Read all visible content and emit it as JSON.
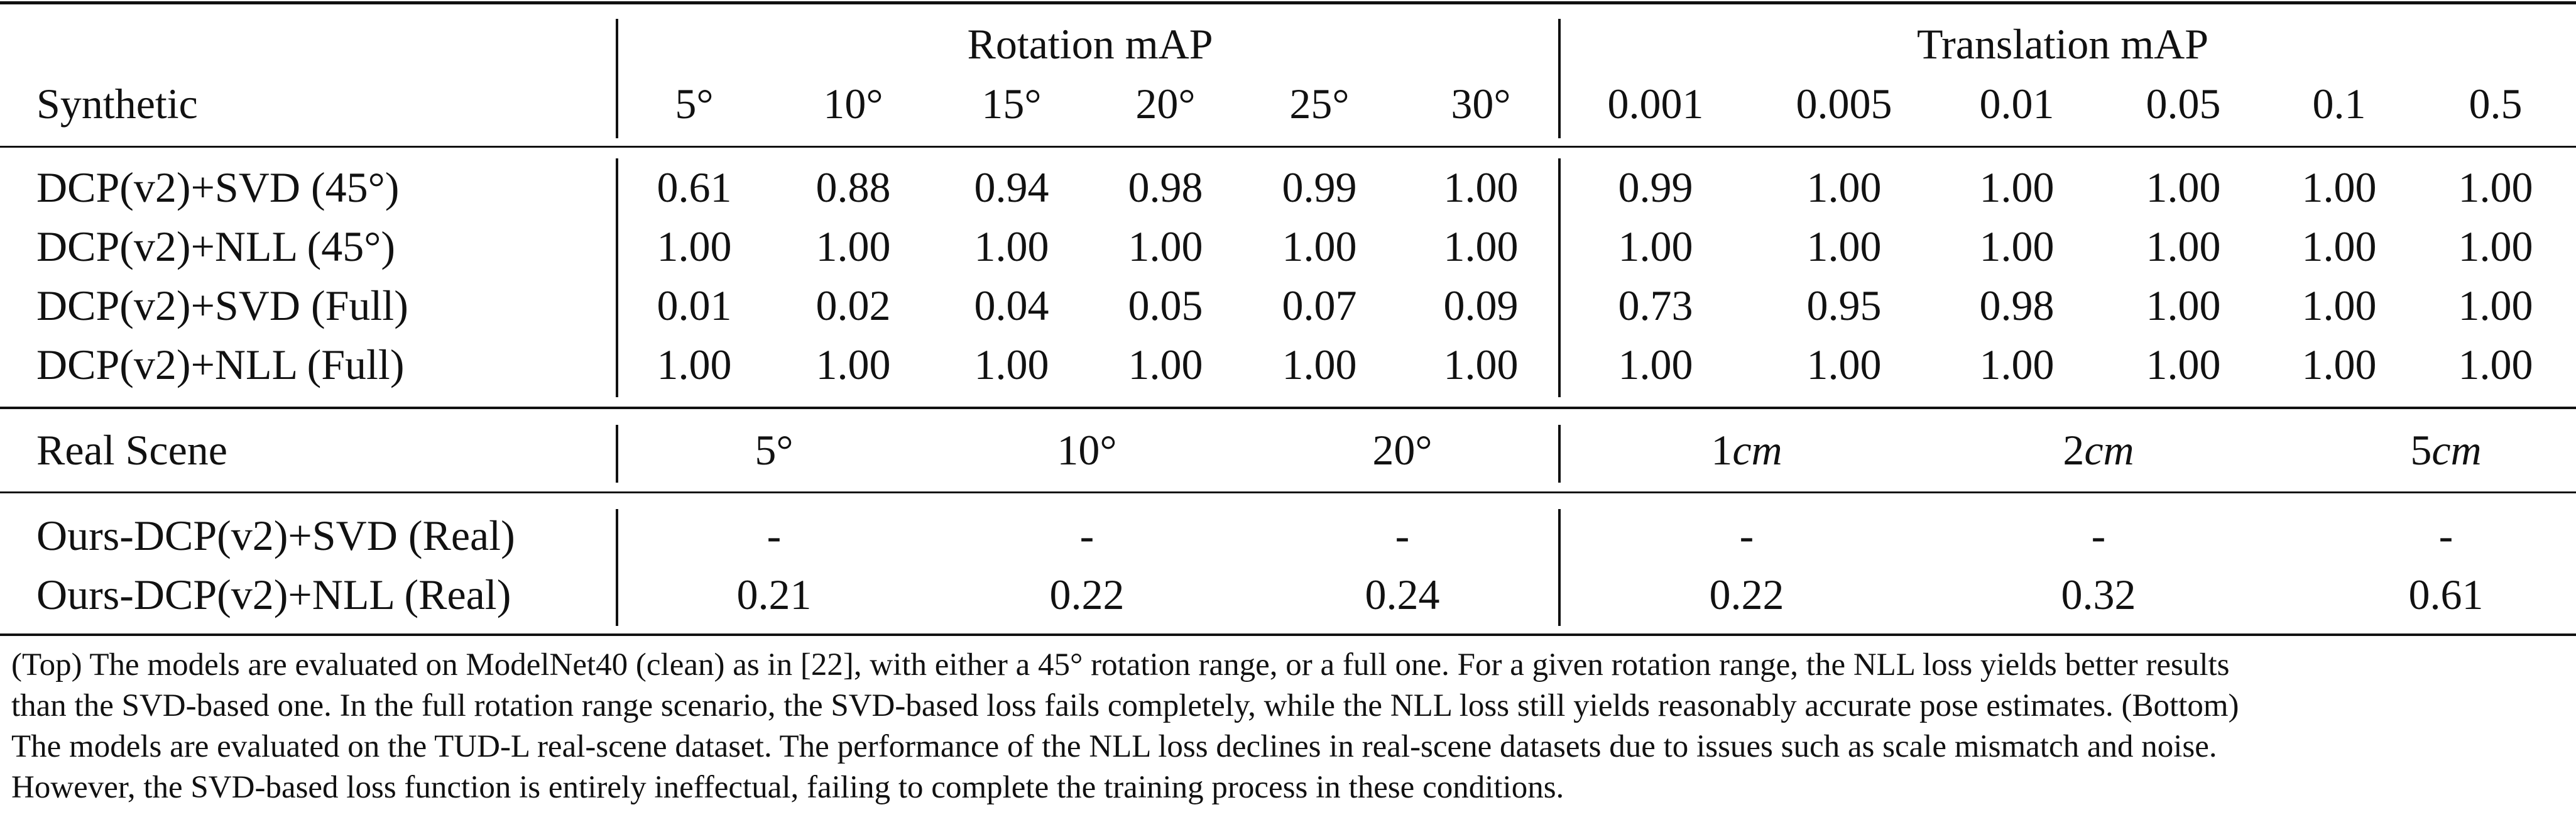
{
  "synthetic": {
    "label": "Synthetic",
    "group_rotation": "Rotation mAP",
    "group_translation": "Translation mAP",
    "rot_headers": [
      "5°",
      "10°",
      "15°",
      "20°",
      "25°",
      "30°"
    ],
    "trans_headers": [
      "0.001",
      "0.005",
      "0.01",
      "0.05",
      "0.1",
      "0.5"
    ],
    "rows": [
      {
        "method": "DCP(v2)+SVD (45°)",
        "rot": [
          "0.61",
          "0.88",
          "0.94",
          "0.98",
          "0.99",
          "1.00"
        ],
        "trans": [
          "0.99",
          "1.00",
          "1.00",
          "1.00",
          "1.00",
          "1.00"
        ]
      },
      {
        "method": "DCP(v2)+NLL (45°)",
        "rot": [
          "1.00",
          "1.00",
          "1.00",
          "1.00",
          "1.00",
          "1.00"
        ],
        "trans": [
          "1.00",
          "1.00",
          "1.00",
          "1.00",
          "1.00",
          "1.00"
        ]
      },
      {
        "method": "DCP(v2)+SVD (Full)",
        "rot": [
          "0.01",
          "0.02",
          "0.04",
          "0.05",
          "0.07",
          "0.09"
        ],
        "trans": [
          "0.73",
          "0.95",
          "0.98",
          "1.00",
          "1.00",
          "1.00"
        ]
      },
      {
        "method": "DCP(v2)+NLL (Full)",
        "rot": [
          "1.00",
          "1.00",
          "1.00",
          "1.00",
          "1.00",
          "1.00"
        ],
        "trans": [
          "1.00",
          "1.00",
          "1.00",
          "1.00",
          "1.00",
          "1.00"
        ]
      }
    ]
  },
  "real": {
    "label": "Real Scene",
    "rot_headers": [
      "5°",
      "10°",
      "20°"
    ],
    "trans_headers": [
      {
        "num": "1",
        "unit": "cm"
      },
      {
        "num": "2",
        "unit": "cm"
      },
      {
        "num": "5",
        "unit": "cm"
      }
    ],
    "rows": [
      {
        "method": "Ours-DCP(v2)+SVD (Real)",
        "rot": [
          "-",
          "-",
          "-"
        ],
        "trans": [
          "-",
          "-",
          "-"
        ]
      },
      {
        "method": "Ours-DCP(v2)+NLL (Real)",
        "rot": [
          "0.21",
          "0.22",
          "0.24"
        ],
        "trans": [
          "0.22",
          "0.32",
          "0.61"
        ]
      }
    ]
  },
  "caption": [
    "(Top) The models are evaluated on ModelNet40 (clean) as in [22], with either a 45° rotation range, or a full one. For a given rotation range, the NLL loss yields better results",
    "than the SVD-based one. In the full rotation range scenario, the SVD-based loss fails completely, while the NLL loss still yields reasonably accurate pose estimates. (Bottom)",
    "The models are evaluated on the TUD-L real-scene dataset. The performance of the NLL loss declines in real-scene datasets due to issues such as scale mismatch and noise.",
    "However, the SVD-based loss function is entirely ineffectual, failing to complete the training process in these conditions."
  ]
}
